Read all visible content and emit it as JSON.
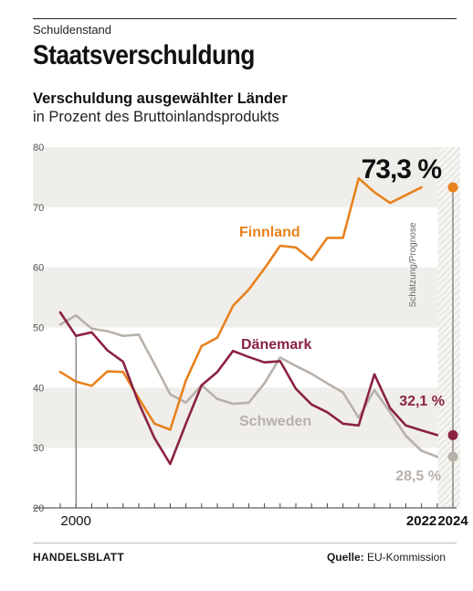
{
  "header": {
    "kicker": "Schuldenstand",
    "title": "Staatsverschuldung"
  },
  "chart_data": {
    "type": "line",
    "title": "Verschuldung ausgewählter Länder",
    "subtitle": "in Prozent des Bruttoinlandsprodukts",
    "xlabel": "",
    "ylabel": "",
    "ylim": [
      20,
      80
    ],
    "yticks": [
      20,
      30,
      40,
      50,
      60,
      70,
      80
    ],
    "x": [
      1999,
      2000,
      2001,
      2002,
      2003,
      2004,
      2005,
      2006,
      2007,
      2008,
      2009,
      2010,
      2011,
      2012,
      2013,
      2014,
      2015,
      2016,
      2017,
      2018,
      2019,
      2020,
      2021,
      2022,
      2023,
      2024
    ],
    "x_tick_labels": [
      {
        "x": 2000,
        "label": "2000"
      },
      {
        "x": 2022,
        "label": "2022"
      },
      {
        "x": 2024,
        "label": "2024"
      }
    ],
    "forecast_label": "Schätzung/Prognose",
    "forecast_from": 2022,
    "highlight_value": "73,3 %",
    "series": [
      {
        "name": "Finnland",
        "color": "#e8821e",
        "end_label": "",
        "values": [
          42.6,
          41.0,
          40.3,
          42.7,
          42.6,
          38.2,
          34.0,
          33.0,
          41.2,
          46.9,
          48.3,
          53.6,
          56.3,
          59.8,
          63.6,
          63.3,
          61.2,
          64.9,
          64.9,
          74.8,
          72.5,
          70.7,
          72.0,
          73.3,
          null,
          null
        ]
      },
      {
        "name": "Dänemark",
        "color": "#8b2340",
        "end_label": "32,1 %",
        "values": [
          52.5,
          48.6,
          49.2,
          46.2,
          44.3,
          37.4,
          31.6,
          27.3,
          34.0,
          40.4,
          42.6,
          46.1,
          45.1,
          44.2,
          44.4,
          39.8,
          37.2,
          35.9,
          34.0,
          33.7,
          42.2,
          36.6,
          33.7,
          32.9,
          32.1,
          null
        ]
      },
      {
        "name": "Schweden",
        "color": "#b8b1aa",
        "end_label": "28,5 %",
        "values": [
          50.5,
          52.0,
          49.8,
          49.4,
          48.6,
          48.8,
          43.9,
          38.9,
          37.5,
          40.4,
          38.1,
          37.3,
          37.5,
          40.7,
          45.0,
          43.6,
          42.3,
          40.7,
          39.2,
          35.0,
          39.6,
          35.9,
          32.0,
          29.5,
          28.5,
          null
        ]
      }
    ],
    "band_fill": "#efeeea",
    "forecast_hatch": "#d9d6d0",
    "grid": false,
    "legend": "inline labels"
  },
  "footer": {
    "brand": "HANDELSBLATT",
    "source_label": "Quelle:",
    "source": "EU-Kommission"
  }
}
